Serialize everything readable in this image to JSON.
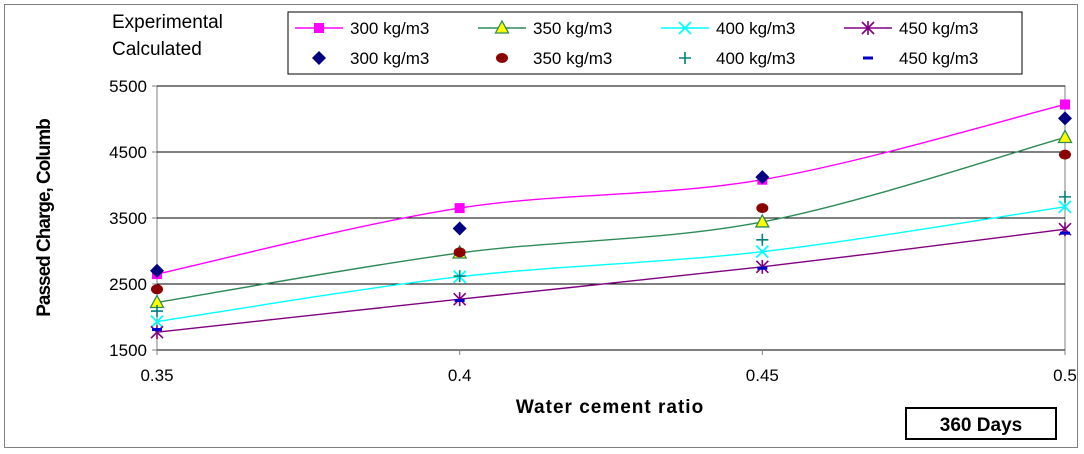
{
  "chart_data": {
    "type": "line",
    "xlabel": "Water cement ratio",
    "ylabel": "Passed Charge, Columb",
    "xlim": [
      0.35,
      0.5
    ],
    "ylim": [
      1500,
      5500
    ],
    "x_ticks": [
      "0.35",
      "0.4",
      "0.45",
      "0.5"
    ],
    "y_ticks": [
      "1500",
      "2500",
      "3500",
      "4500",
      "5500"
    ],
    "annotation": "360 Days",
    "legend_groups": {
      "experimental": "Experimental",
      "calculated": "Calculated"
    },
    "legend_placement": "top",
    "grid": "horizontal",
    "x": [
      0.35,
      0.4,
      0.45,
      0.5
    ],
    "experimental_series": [
      {
        "name": "300 kg/m3",
        "values": [
          2650,
          3650,
          4080,
          5220
        ],
        "color": "#ff00ff",
        "marker": "square"
      },
      {
        "name": "350 kg/m3",
        "values": [
          2220,
          2970,
          3440,
          4720
        ],
        "color": "#2e8b57",
        "marker": "triangle"
      },
      {
        "name": "400 kg/m3",
        "values": [
          1930,
          2610,
          2990,
          3670
        ],
        "color": "#00ffff",
        "marker": "x"
      },
      {
        "name": "450 kg/m3",
        "values": [
          1770,
          2270,
          2760,
          3330
        ],
        "color": "#800080",
        "marker": "asterisk"
      }
    ],
    "calculated_series": [
      {
        "name": "300 kg/m3",
        "values": [
          2700,
          3340,
          4120,
          5010
        ],
        "color": "#000080",
        "marker": "diamond"
      },
      {
        "name": "350 kg/m3",
        "values": [
          2420,
          2980,
          3650,
          4460
        ],
        "color": "#8b0000",
        "marker": "circle"
      },
      {
        "name": "400 kg/m3",
        "values": [
          2090,
          2620,
          3170,
          3820
        ],
        "color": "#008080",
        "marker": "plus"
      },
      {
        "name": "450 kg/m3",
        "values": [
          1810,
          2250,
          2740,
          3270
        ],
        "color": "#0000cd",
        "marker": "dash"
      }
    ]
  }
}
